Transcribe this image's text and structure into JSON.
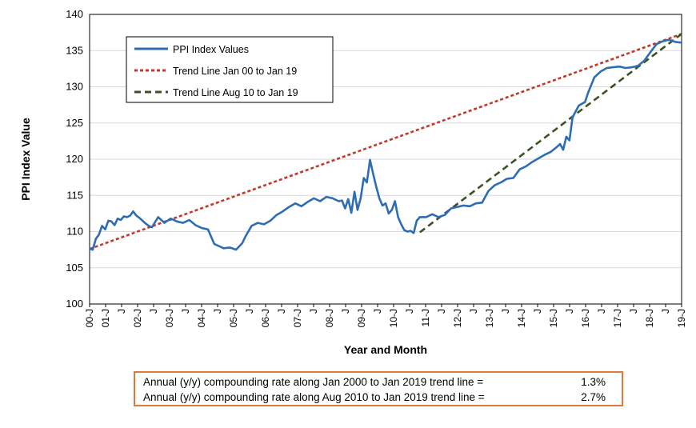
{
  "chart_data": {
    "type": "line",
    "xlabel": "Year and Month",
    "ylabel": "PPI Index Value",
    "ylim": [
      100,
      140
    ],
    "yticks": [
      100,
      105,
      110,
      115,
      120,
      125,
      130,
      135,
      140
    ],
    "xtick_labels": [
      "00-J",
      "01-J",
      "J",
      "02-J",
      "J",
      "03-J",
      "J",
      "04-J",
      "J",
      "05-J",
      "J",
      "06-J",
      "J",
      "07-J",
      "J",
      "08-J",
      "J",
      "09-J",
      "J",
      "10-J",
      "J",
      "11-J",
      "J",
      "12-J",
      "J",
      "13-J",
      "J",
      "14-J",
      "J",
      "15-J",
      "J",
      "16-J",
      "J",
      "17-J",
      "J",
      "18-J",
      "J",
      "19-J"
    ],
    "legend": {
      "position": "top-left",
      "entries": [
        "PPI Index Values",
        "Trend Line Jan 00 to Jan 19",
        "Trend Line Aug 10 to Jan 19"
      ]
    },
    "colors": {
      "ppi": "#2e6db4",
      "trend1": "#c0392b",
      "trend2": "#3b5323"
    },
    "series": [
      {
        "name": "PPI Index Values",
        "x": [
          2000.0,
          2000.1,
          2000.2,
          2000.3,
          2000.4,
          2000.5,
          2000.6,
          2000.7,
          2000.8,
          2000.9,
          2001.0,
          2001.1,
          2001.2,
          2001.3,
          2001.4,
          2001.5,
          2001.6,
          2001.7,
          2001.8,
          2001.9,
          2002.0,
          2002.2,
          2002.4,
          2002.6,
          2002.8,
          2003.0,
          2003.2,
          2003.4,
          2003.6,
          2003.8,
          2004.0,
          2004.2,
          2004.3,
          2004.5,
          2004.7,
          2004.9,
          2005.0,
          2005.2,
          2005.4,
          2005.6,
          2005.8,
          2006.0,
          2006.2,
          2006.4,
          2006.6,
          2006.8,
          2007.0,
          2007.2,
          2007.4,
          2007.6,
          2007.8,
          2008.0,
          2008.1,
          2008.2,
          2008.3,
          2008.4,
          2008.5,
          2008.6,
          2008.7,
          2008.8,
          2008.9,
          2009.0,
          2009.1,
          2009.2,
          2009.3,
          2009.4,
          2009.5,
          2009.6,
          2009.7,
          2009.8,
          2009.9,
          2010.0,
          2010.1,
          2010.2,
          2010.3,
          2010.4,
          2010.5,
          2010.6,
          2010.8,
          2011.0,
          2011.2,
          2011.4,
          2011.6,
          2011.8,
          2012.0,
          2012.2,
          2012.4,
          2012.6,
          2012.8,
          2013.0,
          2013.2,
          2013.4,
          2013.6,
          2013.8,
          2014.0,
          2014.2,
          2014.4,
          2014.6,
          2014.8,
          2015.0,
          2015.1,
          2015.2,
          2015.3,
          2015.4,
          2015.5,
          2015.7,
          2015.9,
          2016.0,
          2016.2,
          2016.4,
          2016.6,
          2016.8,
          2017.0,
          2017.2,
          2017.4,
          2017.6,
          2017.8,
          2018.0,
          2018.2,
          2018.4,
          2018.6,
          2018.8,
          2019.0
        ],
        "values": [
          107.6,
          107.5,
          109.0,
          109.6,
          110.8,
          110.3,
          111.5,
          111.4,
          110.9,
          111.8,
          111.6,
          112.1,
          112.0,
          112.2,
          112.8,
          112.2,
          111.9,
          111.5,
          111.1,
          110.8,
          110.6,
          112.0,
          111.2,
          111.8,
          111.4,
          111.2,
          111.6,
          110.9,
          110.5,
          110.3,
          108.3,
          107.9,
          107.7,
          107.8,
          107.5,
          108.4,
          109.3,
          110.8,
          111.2,
          111.0,
          111.5,
          112.3,
          112.8,
          113.4,
          113.9,
          113.5,
          114.1,
          114.6,
          114.2,
          114.8,
          114.6,
          114.2,
          114.3,
          113.2,
          114.5,
          112.6,
          115.5,
          113.0,
          114.6,
          117.4,
          116.8,
          119.9,
          118.0,
          116.2,
          114.6,
          113.6,
          113.9,
          112.5,
          113.0,
          114.2,
          112.0,
          111.0,
          110.2,
          110.0,
          110.1,
          109.8,
          111.5,
          112.0,
          112.0,
          112.4,
          112.0,
          112.3,
          113.2,
          113.4,
          113.6,
          113.5,
          113.9,
          114.0,
          115.6,
          116.4,
          116.8,
          117.3,
          117.4,
          118.6,
          119.0,
          119.6,
          120.1,
          120.6,
          121.0,
          121.7,
          122.1,
          121.3,
          123.1,
          122.6,
          125.8,
          127.4,
          127.9,
          129.2,
          131.3,
          132.1,
          132.6,
          132.7,
          132.8,
          132.6,
          132.7,
          132.9,
          133.6,
          134.8,
          135.9,
          136.3,
          136.5,
          136.2,
          136.1
        ]
      },
      {
        "name": "Trend Line Jan 00 to Jan 19",
        "x": [
          2000.0,
          2019.0
        ],
        "values": [
          107.6,
          137.3
        ]
      },
      {
        "name": "Trend Line Aug 10 to Jan 19",
        "x": [
          2010.6,
          2019.0
        ],
        "values": [
          109.9,
          137.3
        ]
      }
    ]
  },
  "rates": [
    {
      "label": "Annual (y/y) compounding rate along Jan 2000 to Jan 2019 trend line =",
      "value": "1.3%"
    },
    {
      "label": "Annual (y/y) compounding rate along Aug 2010 to Jan 2019 trend line =",
      "value": "2.7%"
    }
  ]
}
